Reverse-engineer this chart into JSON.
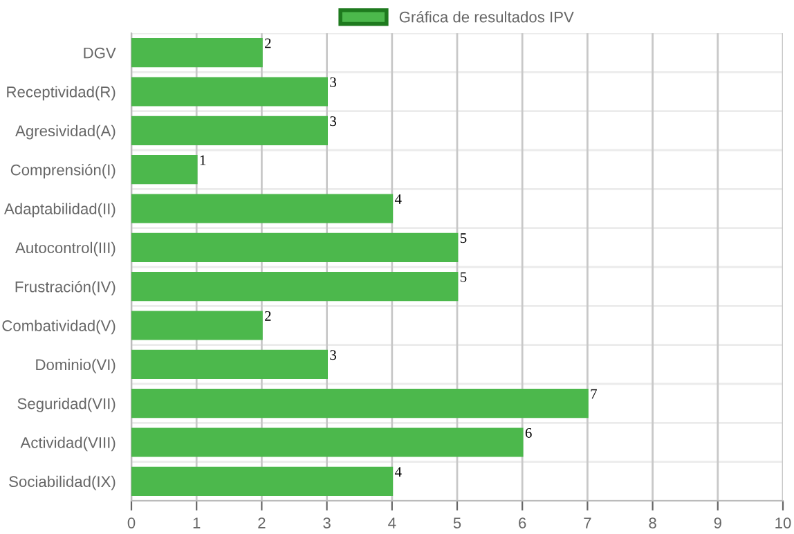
{
  "chart_data": {
    "type": "bar",
    "orientation": "horizontal",
    "categories": [
      "DGV",
      "Receptividad(R)",
      "Agresividad(A)",
      "Comprensión(I)",
      "Adaptabilidad(II)",
      "Autocontrol(III)",
      "Frustración(IV)",
      "Combatividad(V)",
      "Dominio(VI)",
      "Seguridad(VII)",
      "Actividad(VIII)",
      "Sociabilidad(IX)"
    ],
    "series": [
      {
        "name": "Gráfica de resultados IPV",
        "color": "#4cb84c",
        "values": [
          2,
          3,
          3,
          1,
          4,
          5,
          5,
          2,
          3,
          7,
          6,
          4
        ]
      }
    ],
    "xlim": [
      0,
      10
    ],
    "xticks": [
      0,
      1,
      2,
      3,
      4,
      5,
      6,
      7,
      8,
      9,
      10
    ],
    "grid": true,
    "legend": "top",
    "data_labels": true
  }
}
